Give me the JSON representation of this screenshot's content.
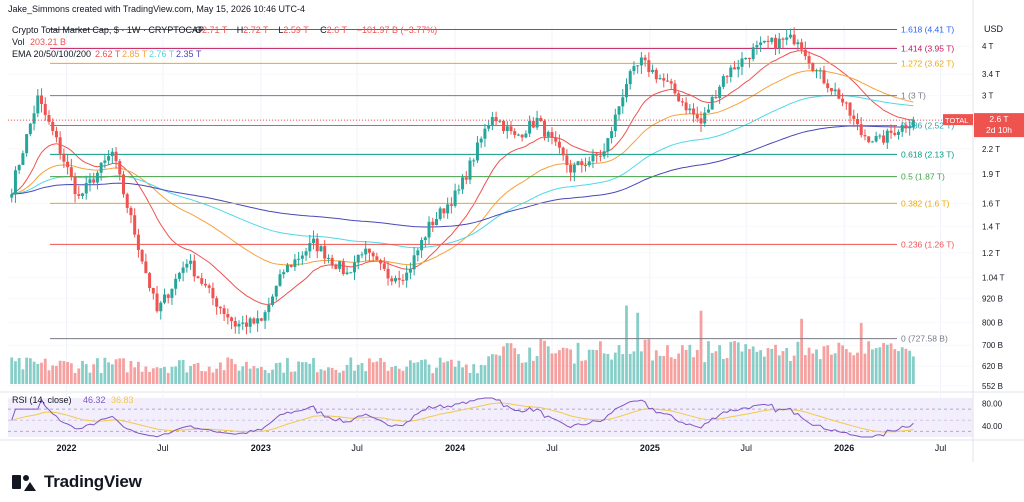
{
  "header": {
    "author_line": "Jake_Simmons created with TradingView.com, May 15, 2026 10:46 UTC-4",
    "symbol": "Crypto Total Market Cap, $ · 1W · CRYPTOCAP",
    "ohlc": [
      {
        "label": "O",
        "value": "2.71 T"
      },
      {
        "label": "H",
        "value": "2.72 T"
      },
      {
        "label": "L",
        "value": "2.59 T"
      },
      {
        "label": "C",
        "value": "2.6 T"
      },
      {
        "label": "",
        "value": "−101.97 B (−3.77%)"
      }
    ],
    "vol_label": "Vol",
    "vol_value": "203.21 B",
    "ema_label": "EMA 20/50/100/200",
    "ema_values": [
      "2.62 T",
      "2.85 T",
      "2.76 T",
      "2.35 T"
    ],
    "currency": "USD"
  },
  "colors": {
    "up": "#26a69a",
    "down": "#ef5350",
    "ema20": "#ef5350",
    "ema50": "#f6a23c",
    "ema100": "#4dd8e8",
    "ema200": "#4a47b8",
    "rsi": "#7e57c2",
    "rsi_ma": "#f2c94c"
  },
  "chart_data": {
    "type": "candlestick",
    "title": "Crypto Total Market Cap, $ · 1W · CRYPTOCAP",
    "scale": "log",
    "y_unit": "T USD",
    "ylim": [
      0.552,
      4.5
    ],
    "x_range": [
      "2021-09-13",
      "2026-08-31"
    ],
    "x_ticks": [
      {
        "date": "2022-01-01",
        "label": "2022"
      },
      {
        "date": "2022-07-01",
        "label": "Jul"
      },
      {
        "date": "2023-01-01",
        "label": "2023"
      },
      {
        "date": "2023-07-01",
        "label": "Jul"
      },
      {
        "date": "2024-01-01",
        "label": "2024"
      },
      {
        "date": "2024-07-01",
        "label": "Jul"
      },
      {
        "date": "2025-01-01",
        "label": "2025"
      },
      {
        "date": "2025-07-01",
        "label": "Jul"
      },
      {
        "date": "2026-01-01",
        "label": "2026"
      },
      {
        "date": "2026-07-01",
        "label": "Jul"
      }
    ],
    "y_ticks": [
      {
        "value": 4.0,
        "label": "4 T"
      },
      {
        "value": 3.4,
        "label": "3.4 T"
      },
      {
        "value": 3.0,
        "label": "3 T"
      },
      {
        "value": 2.6,
        "label": "2.6 T"
      },
      {
        "value": 2.2,
        "label": "2.2 T"
      },
      {
        "value": 1.9,
        "label": "1.9 T"
      },
      {
        "value": 1.6,
        "label": "1.6 T"
      },
      {
        "value": 1.4,
        "label": "1.4 T"
      },
      {
        "value": 1.2,
        "label": "1.2 T"
      },
      {
        "value": 1.04,
        "label": "1.04 T"
      },
      {
        "value": 0.92,
        "label": "920 B"
      },
      {
        "value": 0.8,
        "label": "800 B"
      },
      {
        "value": 0.7,
        "label": "700 B"
      },
      {
        "value": 0.62,
        "label": "620 B"
      },
      {
        "value": 0.552,
        "label": "552 B"
      }
    ],
    "fib_levels": [
      {
        "value": 4.41,
        "label": "1.618 (4.41 T)",
        "color": "#2962ff"
      },
      {
        "value": 3.95,
        "label": "1.414 (3.95 T)",
        "color": "#c2185b"
      },
      {
        "value": 3.62,
        "label": "1.272 (3.62 T)",
        "color": "#f2a900"
      },
      {
        "value": 3.0,
        "label": "1 (3 T)",
        "color": "#787b86"
      },
      {
        "value": 2.52,
        "label": "0.786 (2.52 T)",
        "color": "#26a6b5"
      },
      {
        "value": 2.13,
        "label": "0.618 (2.13 T)",
        "color": "#089981"
      },
      {
        "value": 1.87,
        "label": "0.5 (1.87 T)",
        "color": "#43a047"
      },
      {
        "value": 1.6,
        "label": "0.382 (1.6 T)",
        "color": "#f2a900"
      },
      {
        "value": 1.26,
        "label": "0.236 (1.26 T)",
        "color": "#ef5350"
      },
      {
        "value": 0.72758,
        "label": "0 (727.58 B)",
        "color": "#787b86"
      }
    ],
    "price_line": {
      "value": 2.6,
      "label": "TOTAL",
      "price": "2.6 T",
      "countdown": "2d 10h"
    },
    "anchors": [
      [
        "2021-09-20",
        1.75
      ],
      [
        "2021-11-08",
        2.95
      ],
      [
        "2021-12-13",
        2.3
      ],
      [
        "2022-01-24",
        1.65
      ],
      [
        "2022-03-28",
        2.15
      ],
      [
        "2022-05-09",
        1.35
      ],
      [
        "2022-06-20",
        0.85
      ],
      [
        "2022-08-15",
        1.15
      ],
      [
        "2022-10-03",
        0.92
      ],
      [
        "2022-11-14",
        0.79
      ],
      [
        "2023-01-02",
        0.8
      ],
      [
        "2023-02-13",
        1.08
      ],
      [
        "2023-04-10",
        1.27
      ],
      [
        "2023-06-12",
        1.06
      ],
      [
        "2023-07-10",
        1.22
      ],
      [
        "2023-08-28",
        1.05
      ],
      [
        "2023-10-02",
        1.06
      ],
      [
        "2023-11-13",
        1.4
      ],
      [
        "2024-01-08",
        1.72
      ],
      [
        "2024-03-11",
        2.7
      ],
      [
        "2024-04-22",
        2.35
      ],
      [
        "2024-06-03",
        2.6
      ],
      [
        "2024-08-05",
        1.95
      ],
      [
        "2024-10-07",
        2.15
      ],
      [
        "2024-11-18",
        3.25
      ],
      [
        "2024-12-16",
        3.65
      ],
      [
        "2025-02-03",
        3.2
      ],
      [
        "2025-04-07",
        2.55
      ],
      [
        "2025-05-19",
        3.35
      ],
      [
        "2025-07-14",
        3.9
      ],
      [
        "2025-08-11",
        4.05
      ],
      [
        "2025-10-06",
        4.2
      ],
      [
        "2025-11-10",
        3.45
      ],
      [
        "2025-12-22",
        3.0
      ],
      [
        "2026-02-02",
        2.4
      ],
      [
        "2026-03-09",
        2.3
      ],
      [
        "2026-04-06",
        2.45
      ],
      [
        "2026-05-11",
        2.6
      ]
    ],
    "volume": {
      "label": "Vol",
      "last": "203.21 B",
      "spikes": [
        {
          "date": "2024-11-18",
          "value": 0.7
        },
        {
          "date": "2024-12-09",
          "value": 0.65
        },
        {
          "date": "2025-04-07",
          "value": 0.6
        },
        {
          "date": "2025-10-13",
          "value": 0.62
        },
        {
          "date": "2026-02-02",
          "value": 0.52
        }
      ]
    },
    "rsi": {
      "label": "RSI (14, close)",
      "values_label": [
        "46.32",
        "36.83"
      ],
      "y_ticks": [
        {
          "value": 80,
          "label": "80.00"
        },
        {
          "value": 40,
          "label": "40.00"
        }
      ],
      "overbought": 70,
      "oversold": 30
    }
  },
  "footer": {
    "brand": "TradingView"
  }
}
